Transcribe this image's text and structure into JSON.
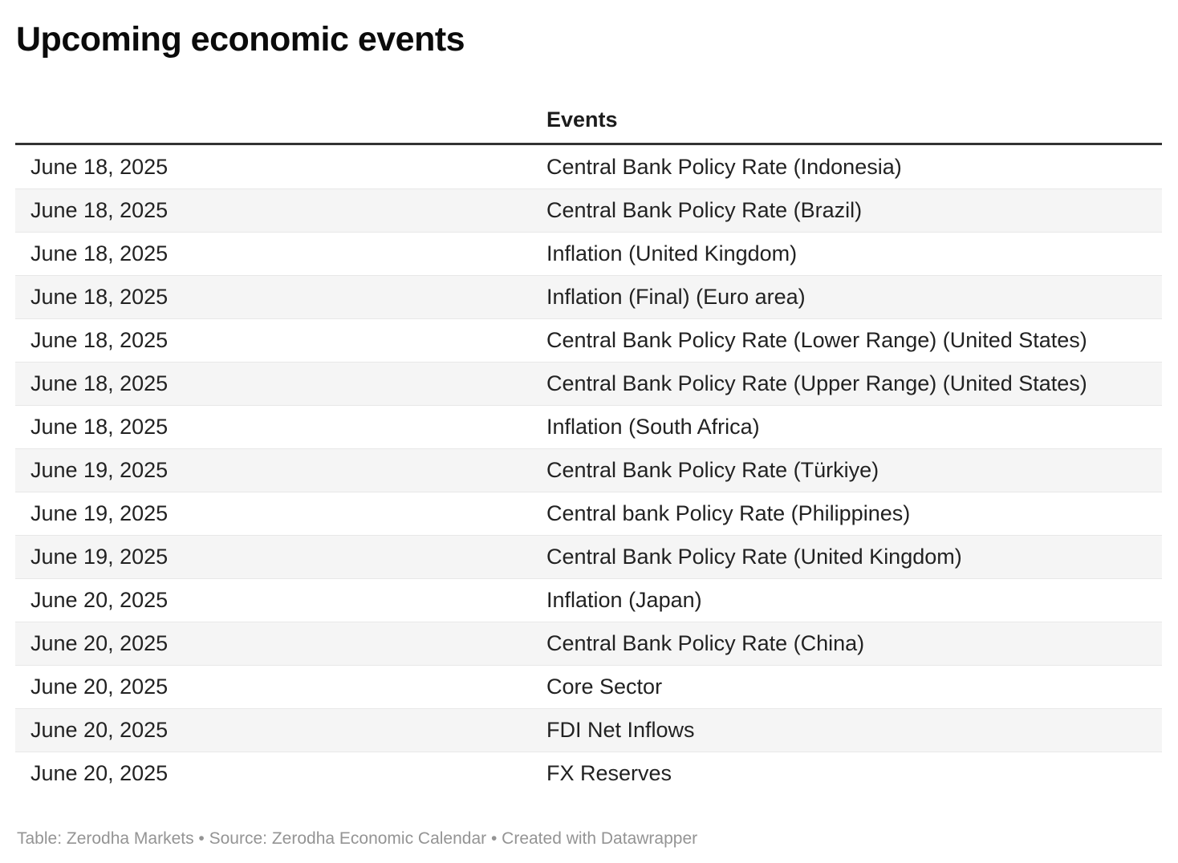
{
  "page": {
    "title": "Upcoming economic events",
    "footer": "Table: Zerodha Markets • Source: Zerodha Economic Calendar • Created with Datawrapper"
  },
  "table": {
    "columns": [
      "",
      "Events"
    ],
    "events_header": "Events",
    "rows": [
      {
        "date": "June 18, 2025",
        "event": "Central Bank Policy Rate (Indonesia)"
      },
      {
        "date": "June 18, 2025",
        "event": "Central Bank Policy Rate (Brazil)"
      },
      {
        "date": "June 18, 2025",
        "event": "Inflation (United Kingdom)"
      },
      {
        "date": "June 18, 2025",
        "event": "Inflation (Final) (Euro area)"
      },
      {
        "date": "June 18, 2025",
        "event": "Central Bank Policy Rate (Lower Range) (United States)"
      },
      {
        "date": "June 18, 2025",
        "event": "Central Bank Policy Rate (Upper Range) (United States)"
      },
      {
        "date": "June 18, 2025",
        "event": "Inflation (South Africa)"
      },
      {
        "date": "June 19, 2025",
        "event": "Central Bank Policy Rate (Türkiye)"
      },
      {
        "date": "June 19, 2025",
        "event": "Central bank Policy Rate (Philippines)"
      },
      {
        "date": "June 19, 2025",
        "event": "Central Bank Policy Rate (United Kingdom)"
      },
      {
        "date": "June 20, 2025",
        "event": "Inflation (Japan)"
      },
      {
        "date": "June 20, 2025",
        "event": "Central Bank Policy Rate (China)"
      },
      {
        "date": "June 20, 2025",
        "event": "Core Sector"
      },
      {
        "date": "June 20, 2025",
        "event": "FDI Net Inflows"
      },
      {
        "date": "June 20, 2025",
        "event": "FX Reserves"
      }
    ]
  },
  "colors": {
    "header_rule": "#333333",
    "row_alt_background": "#f5f5f5",
    "row_border": "#e8e8e8",
    "body_text": "#222222",
    "title_text": "#0b0b0b",
    "footer_text": "#949494"
  }
}
